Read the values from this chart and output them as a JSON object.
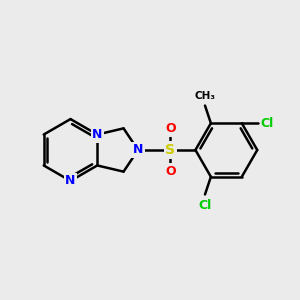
{
  "background_color": "#ebebeb",
  "bond_color": "#000000",
  "N_color": "#0000ff",
  "S_color": "#cccc00",
  "O_color": "#ff0000",
  "Cl_color": "#00cc00",
  "CH3_color": "#000000",
  "figsize": [
    3.0,
    3.0
  ],
  "dpi": 100,
  "xlim": [
    0,
    10
  ],
  "ylim": [
    0,
    10
  ]
}
